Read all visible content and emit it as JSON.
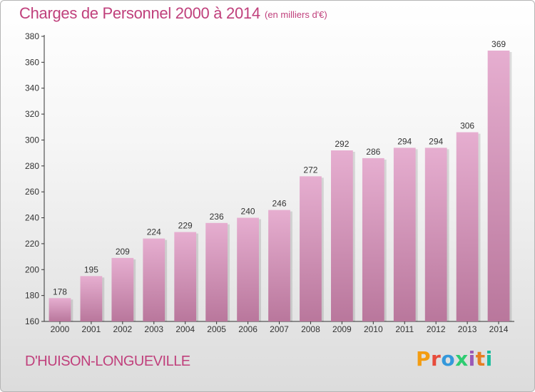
{
  "header": {
    "title": "Charges de Personnel 2000 à 2014",
    "subtitle": "(en milliers d'€)"
  },
  "footer": {
    "commune": "D'HUISON-LONGUEVILLE",
    "brand": "Proxiti",
    "brand_colors": [
      "#f39c12",
      "#e74c3c",
      "#3498db",
      "#2ecc71",
      "#9b59b6",
      "#e67e22",
      "#1abc9c"
    ]
  },
  "chart_data": {
    "type": "bar",
    "categories": [
      "2000",
      "2001",
      "2002",
      "2003",
      "2004",
      "2005",
      "2006",
      "2007",
      "2008",
      "2009",
      "2010",
      "2011",
      "2012",
      "2013",
      "2014"
    ],
    "values": [
      178,
      195,
      209,
      224,
      229,
      236,
      240,
      246,
      272,
      292,
      286,
      294,
      294,
      306,
      369
    ],
    "ylim": [
      160,
      380
    ],
    "yticks": [
      160,
      180,
      200,
      220,
      240,
      260,
      280,
      300,
      320,
      340,
      360,
      380
    ],
    "grid": false,
    "bar_color_top": "#e6aed0",
    "bar_color_bottom": "#b9779c",
    "axis_color": "#333333"
  }
}
